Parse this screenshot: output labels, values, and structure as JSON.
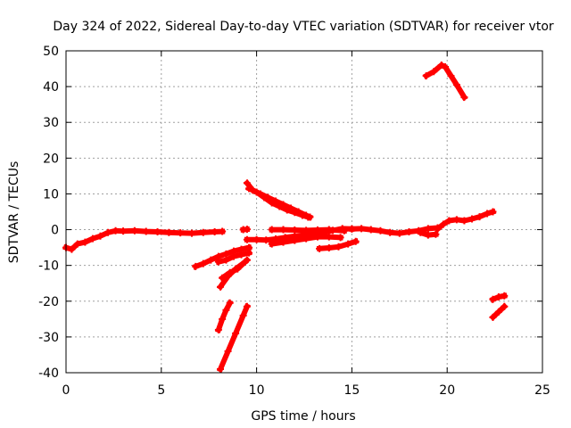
{
  "chart_data": {
    "type": "scatter",
    "title": "Day 324 of 2022, Sidereal Day-to-day VTEC variation (SDTVAR) for receiver vtor",
    "xlabel": "GPS time / hours",
    "ylabel": "SDTVAR / TECUs",
    "xlim": [
      0,
      25
    ],
    "ylim": [
      -40,
      50
    ],
    "xticks": [
      0,
      5,
      10,
      15,
      20,
      25
    ],
    "yticks": [
      -40,
      -30,
      -20,
      -10,
      0,
      10,
      20,
      30,
      40,
      50
    ],
    "grid": true,
    "series_color": "#ff0000",
    "segments": [
      {
        "x": [
          0.0,
          0.3,
          0.6,
          1.0,
          1.4,
          1.8,
          2.2,
          2.6,
          3.0,
          3.6,
          4.2,
          4.8,
          5.4,
          6.0,
          6.6,
          7.2,
          7.8,
          8.2
        ],
        "y": [
          -5.0,
          -5.5,
          -4.0,
          -3.5,
          -2.5,
          -1.8,
          -0.8,
          -0.3,
          -0.4,
          -0.3,
          -0.5,
          -0.6,
          -0.8,
          -0.9,
          -1.0,
          -0.8,
          -0.6,
          -0.5
        ]
      },
      {
        "x": [
          6.8,
          7.2,
          7.6,
          8.0,
          8.4,
          8.8,
          9.2,
          9.6
        ],
        "y": [
          -10.3,
          -9.5,
          -8.5,
          -7.5,
          -6.8,
          -6.0,
          -5.5,
          -5.0
        ]
      },
      {
        "x": [
          8.0,
          8.4,
          8.8,
          9.2,
          9.6
        ],
        "y": [
          -9.0,
          -8.5,
          -7.5,
          -7.0,
          -6.5
        ]
      },
      {
        "x": [
          8.2,
          8.6,
          9.0,
          9.5
        ],
        "y": [
          -13.5,
          -12.0,
          -11.0,
          -8.5
        ]
      },
      {
        "x": [
          8.1,
          8.5,
          8.9,
          9.4
        ],
        "y": [
          -16.0,
          -13.0,
          -11.0,
          -9.0
        ]
      },
      {
        "x": [
          8.0,
          8.2,
          8.4,
          8.6
        ],
        "y": [
          -28.0,
          -25.0,
          -22.5,
          -20.5
        ]
      },
      {
        "x": [
          8.1,
          8.5,
          8.9,
          9.3,
          9.5
        ],
        "y": [
          -39.0,
          -34.0,
          -29.0,
          -24.0,
          -21.5
        ]
      },
      {
        "x": [
          9.5,
          9.8,
          10.2,
          10.6,
          11.0,
          11.4,
          11.8,
          12.2,
          12.6,
          12.8
        ],
        "y": [
          13.0,
          11.0,
          10.0,
          9.0,
          8.0,
          7.0,
          6.0,
          5.0,
          4.0,
          3.5
        ]
      },
      {
        "x": [
          9.6,
          10.0,
          10.4,
          10.8,
          11.2,
          11.6,
          12.0,
          12.4,
          12.7
        ],
        "y": [
          11.5,
          10.5,
          9.0,
          7.5,
          6.5,
          5.5,
          4.8,
          4.0,
          3.5
        ]
      },
      {
        "x": [
          9.5,
          10.0,
          10.5,
          11.0,
          11.5,
          12.0,
          12.5,
          13.0,
          13.5,
          14.0,
          14.5,
          15.0
        ],
        "y": [
          -2.8,
          -2.8,
          -2.9,
          -2.6,
          -2.2,
          -1.8,
          -1.5,
          -1.2,
          -0.8,
          -0.2,
          0.3,
          0.2
        ]
      },
      {
        "x": [
          10.8,
          11.4,
          12.0,
          12.6,
          13.2,
          13.8,
          14.4
        ],
        "y": [
          -4.0,
          -3.5,
          -3.0,
          -2.5,
          -2.0,
          -2.0,
          -2.2
        ]
      },
      {
        "x": [
          10.8,
          11.4,
          12.0,
          12.6,
          13.2,
          13.8,
          14.6
        ],
        "y": [
          0.0,
          0.0,
          -0.1,
          -0.2,
          -0.1,
          0.0,
          -0.3
        ]
      },
      {
        "x": [
          13.3,
          13.8,
          14.3,
          14.8,
          15.2
        ],
        "y": [
          -5.3,
          -5.1,
          -4.8,
          -4.0,
          -3.3
        ]
      },
      {
        "x": [
          15.0,
          15.5,
          16.0,
          16.5,
          17.0,
          17.5,
          18.0,
          18.5,
          19.0,
          19.5
        ],
        "y": [
          0.2,
          0.3,
          0.0,
          -0.3,
          -0.8,
          -1.0,
          -0.6,
          -0.3,
          0.3,
          0.5
        ]
      },
      {
        "x": [
          18.6,
          19.0,
          19.4
        ],
        "y": [
          -0.8,
          -1.5,
          -1.3
        ]
      },
      {
        "x": [
          19.5,
          19.8,
          20.1,
          20.5,
          20.9,
          21.3,
          21.7,
          22.1,
          22.4
        ],
        "y": [
          0.2,
          1.5,
          2.5,
          2.8,
          2.5,
          3.0,
          3.6,
          4.5,
          5.0
        ]
      },
      {
        "x": [
          18.9,
          19.3,
          19.7,
          19.9,
          20.2,
          20.5,
          20.9
        ],
        "y": [
          43.0,
          44.2,
          46.0,
          45.5,
          43.0,
          40.5,
          37.0
        ]
      },
      {
        "x": [
          22.4,
          22.7,
          23.0
        ],
        "y": [
          -19.5,
          -18.8,
          -18.5
        ]
      },
      {
        "x": [
          22.4,
          22.7,
          23.0
        ],
        "y": [
          -24.5,
          -23.0,
          -21.5
        ]
      },
      {
        "x": [
          9.3,
          9.5
        ],
        "y": [
          0.0,
          0.1
        ]
      }
    ]
  }
}
